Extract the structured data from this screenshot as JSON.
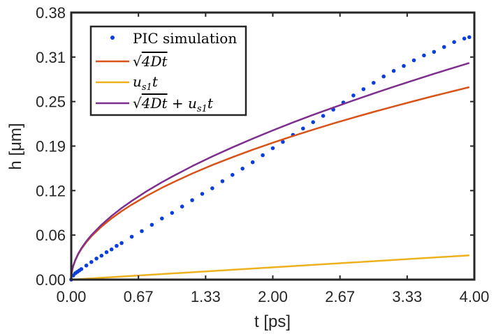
{
  "chart_data": {
    "type": "line",
    "xlabel": "t [ps]",
    "ylabel": "h [μm]",
    "xlim": [
      0,
      4.0
    ],
    "ylim": [
      0,
      0.38
    ],
    "x_ticks": [
      "0.00",
      "0.67",
      "1.33",
      "2.00",
      "2.67",
      "3.33",
      "4.00"
    ],
    "y_ticks": [
      "0.00",
      "0.06",
      "0.12",
      "0.19",
      "0.25",
      "0.31",
      "0.38"
    ],
    "grid": false,
    "legend_location": "top-left",
    "series": [
      {
        "name": "PIC simulation",
        "kind": "scatter",
        "color": "#0a3fdc",
        "x": [
          0.0,
          0.02,
          0.04,
          0.06,
          0.08,
          0.1,
          0.15,
          0.2,
          0.25,
          0.3,
          0.35,
          0.4,
          0.45,
          0.5,
          0.6,
          0.7,
          0.8,
          0.9,
          1.0,
          1.1,
          1.2,
          1.3,
          1.4,
          1.5,
          1.6,
          1.7,
          1.8,
          1.9,
          2.0,
          2.1,
          2.2,
          2.3,
          2.4,
          2.5,
          2.6,
          2.7,
          2.8,
          2.9,
          3.0,
          3.1,
          3.2,
          3.3,
          3.4,
          3.5,
          3.6,
          3.7,
          3.8,
          3.9,
          3.95
        ],
        "values": [
          0.0,
          0.006,
          0.009,
          0.011,
          0.013,
          0.015,
          0.02,
          0.025,
          0.03,
          0.034,
          0.039,
          0.043,
          0.048,
          0.052,
          0.061,
          0.069,
          0.078,
          0.087,
          0.095,
          0.104,
          0.113,
          0.122,
          0.13,
          0.14,
          0.149,
          0.158,
          0.167,
          0.177,
          0.187,
          0.196,
          0.206,
          0.215,
          0.224,
          0.233,
          0.242,
          0.252,
          0.262,
          0.271,
          0.28,
          0.289,
          0.297,
          0.304,
          0.312,
          0.319,
          0.324,
          0.331,
          0.338,
          0.343,
          0.345
        ]
      },
      {
        "name": "√4Dt",
        "kind": "line",
        "color": "#d95319",
        "x": [
          0.0,
          0.005,
          0.01,
          0.02,
          0.04,
          0.07,
          0.1,
          0.15,
          0.2,
          0.3,
          0.4,
          0.5,
          0.6,
          0.75,
          0.9,
          1.0,
          1.2,
          1.4,
          1.6,
          1.8,
          2.0,
          2.2,
          2.4,
          2.6,
          2.8,
          3.0,
          3.2,
          3.4,
          3.6,
          3.8,
          3.95
        ],
        "values": [
          0.0,
          0.0097,
          0.0138,
          0.0195,
          0.0275,
          0.0364,
          0.0435,
          0.0533,
          0.0616,
          0.0754,
          0.0871,
          0.0974,
          0.1067,
          0.1193,
          0.1307,
          0.1377,
          0.1509,
          0.163,
          0.1742,
          0.1848,
          0.1948,
          0.2043,
          0.2134,
          0.2221,
          0.2305,
          0.2386,
          0.2464,
          0.254,
          0.2614,
          0.2685,
          0.2738
        ]
      },
      {
        "name": "u_s1 t",
        "kind": "line",
        "color": "#edb120",
        "x": [
          0.0,
          3.95
        ],
        "values": [
          0.0,
          0.0345
        ]
      },
      {
        "name": "√4Dt + u_s1 t",
        "kind": "line",
        "color": "#7e2f8e",
        "x": [
          0.0,
          0.005,
          0.01,
          0.02,
          0.04,
          0.07,
          0.1,
          0.15,
          0.2,
          0.3,
          0.4,
          0.5,
          0.6,
          0.75,
          0.9,
          1.0,
          1.2,
          1.4,
          1.6,
          1.8,
          2.0,
          2.2,
          2.4,
          2.6,
          2.8,
          3.0,
          3.2,
          3.4,
          3.6,
          3.8,
          3.95
        ],
        "values": [
          0.0,
          0.0097,
          0.0139,
          0.0197,
          0.0279,
          0.037,
          0.0444,
          0.0546,
          0.0633,
          0.078,
          0.0906,
          0.1018,
          0.1119,
          0.1259,
          0.1386,
          0.1464,
          0.1614,
          0.1752,
          0.1882,
          0.2005,
          0.2123,
          0.2236,
          0.2344,
          0.2448,
          0.255,
          0.2648,
          0.2744,
          0.2837,
          0.2929,
          0.3017,
          0.3083
        ]
      }
    ]
  }
}
